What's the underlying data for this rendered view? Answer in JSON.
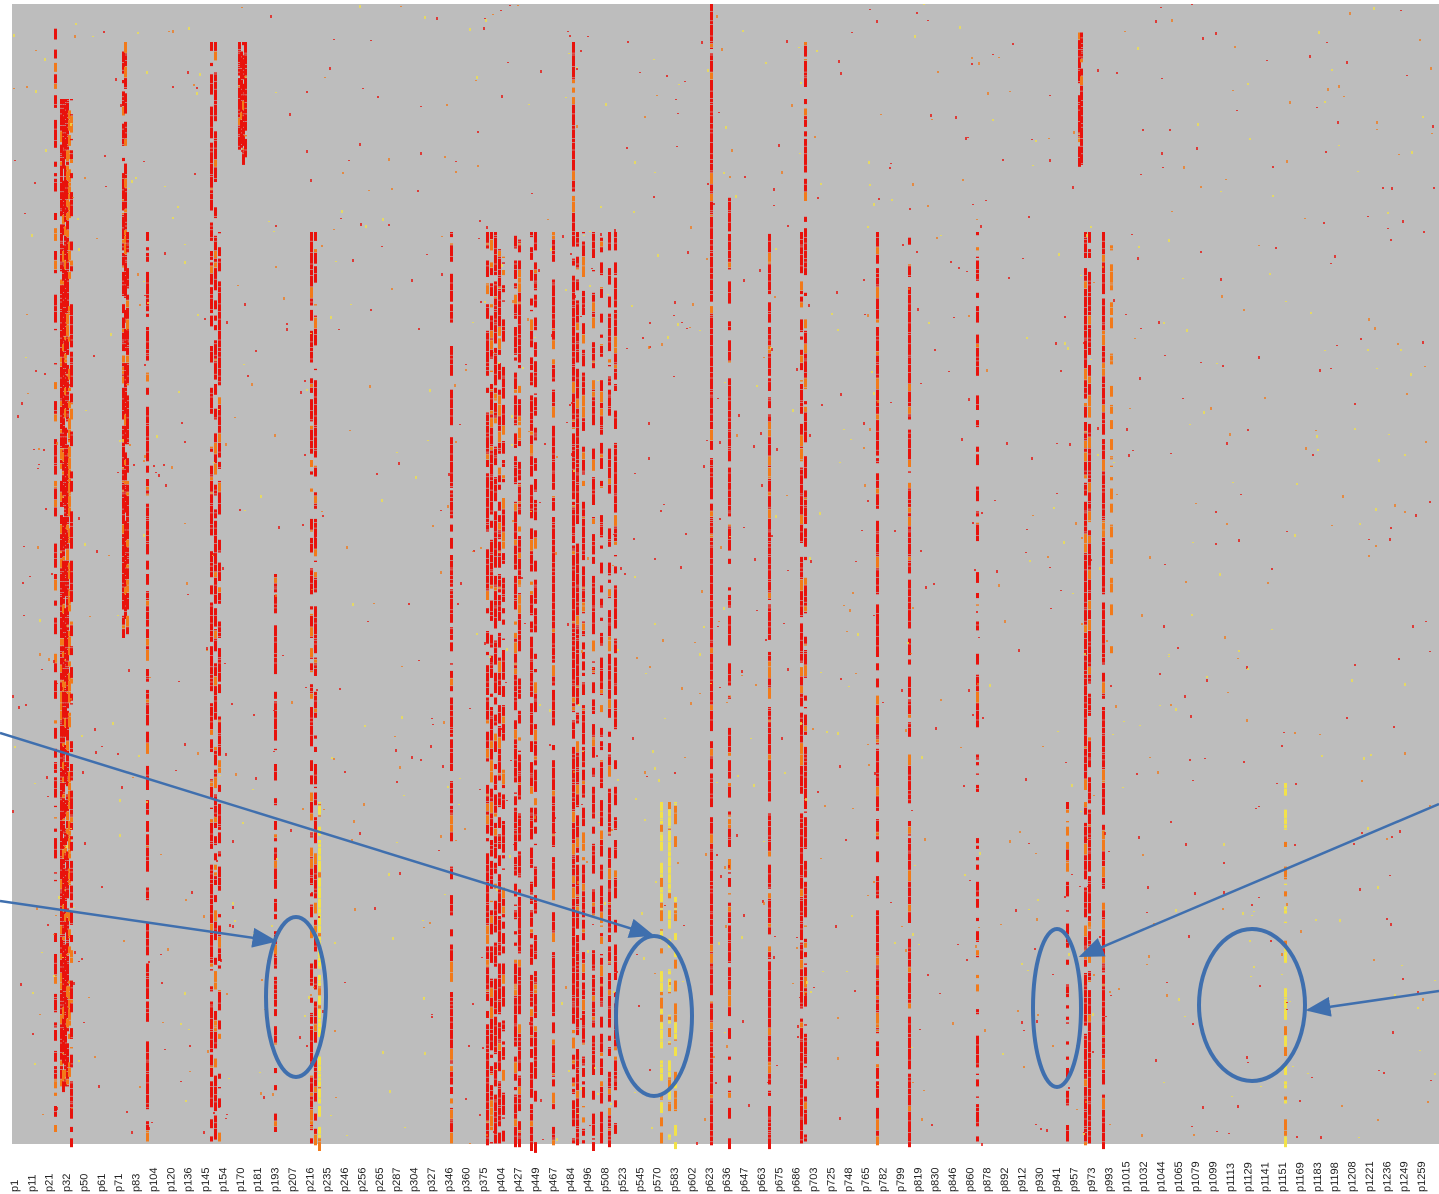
{
  "chart_data": {
    "type": "heatmap",
    "title": "",
    "xlabel": "",
    "ylabel": "",
    "grid": false,
    "legend": "none",
    "colors": {
      "background": "#bdbdbd",
      "high": "#e8120c",
      "mid": "#f27a1a",
      "low": "#f2e24a",
      "annotation": "#3f6fae"
    },
    "x_ticks": [
      "p1",
      "p11",
      "p21",
      "p32",
      "p50",
      "p61",
      "p71",
      "p83",
      "p104",
      "p120",
      "p136",
      "p145",
      "p154",
      "p170",
      "p181",
      "p193",
      "p207",
      "p216",
      "p235",
      "p246",
      "p256",
      "p265",
      "p287",
      "p304",
      "p327",
      "p346",
      "p360",
      "p375",
      "p404",
      "p427",
      "p449",
      "p467",
      "p484",
      "p496",
      "p508",
      "p523",
      "p545",
      "p570",
      "p583",
      "p602",
      "p623",
      "p636",
      "p647",
      "p663",
      "p675",
      "p686",
      "p703",
      "p725",
      "p748",
      "p765",
      "p782",
      "p799",
      "p819",
      "p830",
      "p846",
      "p860",
      "p878",
      "p892",
      "p912",
      "p930",
      "p941",
      "p957",
      "p973",
      "p993",
      "p1015",
      "p1032",
      "p1044",
      "p1065",
      "p1079",
      "p1099",
      "p1113",
      "p1129",
      "p1141",
      "p1151",
      "p1169",
      "p1183",
      "p1198",
      "p1208",
      "p1221",
      "p1236",
      "p1249",
      "p1259"
    ],
    "rows": 600,
    "stripes": [
      {
        "col": 42,
        "rows": [
          0,
          600
        ],
        "level": "red",
        "density": 0.5
      },
      {
        "col": 48,
        "rows": [
          50,
          570
        ],
        "level": "red",
        "density": 0.95
      },
      {
        "col": 50,
        "rows": [
          50,
          570
        ],
        "level": "red",
        "density": 0.95
      },
      {
        "col": 52,
        "rows": [
          50,
          570
        ],
        "level": "red",
        "density": 0.95
      },
      {
        "col": 54,
        "rows": [
          50,
          570
        ],
        "level": "red",
        "density": 0.95
      },
      {
        "col": 56,
        "rows": [
          50,
          570
        ],
        "level": "orange",
        "density": 0.6
      },
      {
        "col": 58,
        "rows": [
          50,
          600
        ],
        "level": "red",
        "density": 0.6
      },
      {
        "col": 110,
        "rows": [
          20,
          330
        ],
        "level": "red",
        "density": 0.9
      },
      {
        "col": 112,
        "rows": [
          20,
          330
        ],
        "level": "red",
        "density": 0.9
      },
      {
        "col": 114,
        "rows": [
          120,
          330
        ],
        "level": "red",
        "density": 0.9
      },
      {
        "col": 134,
        "rows": [
          120,
          600
        ],
        "level": "red",
        "density": 0.7
      },
      {
        "col": 198,
        "rows": [
          20,
          600
        ],
        "level": "red",
        "density": 0.7
      },
      {
        "col": 202,
        "rows": [
          20,
          600
        ],
        "level": "red",
        "density": 0.7
      },
      {
        "col": 206,
        "rows": [
          120,
          600
        ],
        "level": "red",
        "density": 0.6
      },
      {
        "col": 226,
        "rows": [
          20,
          80
        ],
        "level": "red",
        "density": 0.95
      },
      {
        "col": 228,
        "rows": [
          20,
          80
        ],
        "level": "red",
        "density": 0.95
      },
      {
        "col": 230,
        "rows": [
          20,
          80
        ],
        "level": "red",
        "density": 0.95
      },
      {
        "col": 232,
        "rows": [
          20,
          80
        ],
        "level": "red",
        "density": 0.95
      },
      {
        "col": 262,
        "rows": [
          300,
          600
        ],
        "level": "red",
        "density": 0.6
      },
      {
        "col": 298,
        "rows": [
          120,
          600
        ],
        "level": "red",
        "density": 0.7
      },
      {
        "col": 302,
        "rows": [
          120,
          600
        ],
        "level": "red",
        "density": 0.75
      },
      {
        "col": 306,
        "rows": [
          420,
          600
        ],
        "level": "yellow",
        "density": 0.7
      },
      {
        "col": 438,
        "rows": [
          120,
          600
        ],
        "level": "red",
        "density": 0.75
      },
      {
        "col": 474,
        "rows": [
          120,
          600
        ],
        "level": "red",
        "density": 0.8
      },
      {
        "col": 478,
        "rows": [
          120,
          600
        ],
        "level": "red",
        "density": 0.8
      },
      {
        "col": 482,
        "rows": [
          120,
          600
        ],
        "level": "red",
        "density": 0.8
      },
      {
        "col": 486,
        "rows": [
          120,
          600
        ],
        "level": "red",
        "density": 0.8
      },
      {
        "col": 490,
        "rows": [
          120,
          600
        ],
        "level": "red",
        "density": 0.6
      },
      {
        "col": 502,
        "rows": [
          120,
          600
        ],
        "level": "red",
        "density": 0.8
      },
      {
        "col": 506,
        "rows": [
          120,
          600
        ],
        "level": "red",
        "density": 0.8
      },
      {
        "col": 518,
        "rows": [
          120,
          600
        ],
        "level": "red",
        "density": 0.7
      },
      {
        "col": 522,
        "rows": [
          120,
          600
        ],
        "level": "red",
        "density": 0.7
      },
      {
        "col": 540,
        "rows": [
          120,
          600
        ],
        "level": "red",
        "density": 0.8
      },
      {
        "col": 560,
        "rows": [
          20,
          600
        ],
        "level": "red",
        "density": 0.85
      },
      {
        "col": 564,
        "rows": [
          120,
          600
        ],
        "level": "red",
        "density": 0.85
      },
      {
        "col": 570,
        "rows": [
          120,
          600
        ],
        "level": "red",
        "density": 0.7
      },
      {
        "col": 580,
        "rows": [
          120,
          600
        ],
        "level": "red",
        "density": 0.7
      },
      {
        "col": 588,
        "rows": [
          120,
          600
        ],
        "level": "red",
        "density": 0.7
      },
      {
        "col": 596,
        "rows": [
          120,
          600
        ],
        "level": "red",
        "density": 0.75
      },
      {
        "col": 602,
        "rows": [
          120,
          600
        ],
        "level": "red",
        "density": 0.75
      },
      {
        "col": 648,
        "rows": [
          420,
          600
        ],
        "level": "yellow",
        "density": 0.7
      },
      {
        "col": 656,
        "rows": [
          420,
          600
        ],
        "level": "yellow",
        "density": 0.7
      },
      {
        "col": 662,
        "rows": [
          420,
          600
        ],
        "level": "yellow",
        "density": 0.6
      },
      {
        "col": 698,
        "rows": [
          0,
          600
        ],
        "level": "red",
        "density": 0.95
      },
      {
        "col": 716,
        "rows": [
          100,
          600
        ],
        "level": "red",
        "density": 0.6
      },
      {
        "col": 756,
        "rows": [
          120,
          600
        ],
        "level": "red",
        "density": 0.85
      },
      {
        "col": 788,
        "rows": [
          120,
          600
        ],
        "level": "red",
        "density": 0.85
      },
      {
        "col": 792,
        "rows": [
          20,
          600
        ],
        "level": "red",
        "density": 0.6
      },
      {
        "col": 864,
        "rows": [
          120,
          600
        ],
        "level": "red",
        "density": 0.85
      },
      {
        "col": 896,
        "rows": [
          120,
          600
        ],
        "level": "red",
        "density": 0.85
      },
      {
        "col": 964,
        "rows": [
          120,
          600
        ],
        "level": "red",
        "density": 0.4
      },
      {
        "col": 1066,
        "rows": [
          15,
          85
        ],
        "level": "red",
        "density": 0.95
      },
      {
        "col": 1068,
        "rows": [
          15,
          85
        ],
        "level": "red",
        "density": 0.95
      },
      {
        "col": 1054,
        "rows": [
          420,
          600
        ],
        "level": "red",
        "density": 0.5
      },
      {
        "col": 1072,
        "rows": [
          120,
          600
        ],
        "level": "red",
        "density": 0.9
      },
      {
        "col": 1076,
        "rows": [
          120,
          600
        ],
        "level": "red",
        "density": 0.9
      },
      {
        "col": 1090,
        "rows": [
          120,
          600
        ],
        "level": "red",
        "density": 0.95
      },
      {
        "col": 1098,
        "rows": [
          120,
          340
        ],
        "level": "orange",
        "density": 0.4
      },
      {
        "col": 1272,
        "rows": [
          410,
          600
        ],
        "level": "yellow",
        "density": 0.6
      }
    ],
    "annotations": [
      {
        "type": "ellipse",
        "cx": 296,
        "cy": 997,
        "rx": 30,
        "ry": 80
      },
      {
        "type": "ellipse",
        "cx": 654,
        "cy": 1016,
        "rx": 38,
        "ry": 80
      },
      {
        "type": "ellipse",
        "cx": 1057,
        "cy": 1008,
        "rx": 24,
        "ry": 79
      },
      {
        "type": "ellipse",
        "cx": 1252,
        "cy": 1005,
        "rx": 53,
        "ry": 76
      },
      {
        "type": "arrow",
        "from": [
          0,
          733
        ],
        "to": [
          652,
          935
        ]
      },
      {
        "type": "arrow",
        "from": [
          0,
          901
        ],
        "to": [
          275,
          941
        ]
      },
      {
        "type": "arrow",
        "from": [
          1439,
          804
        ],
        "to": [
          1081,
          956
        ]
      },
      {
        "type": "arrow",
        "from": [
          1439,
          991
        ],
        "to": [
          1308,
          1010
        ]
      }
    ]
  }
}
